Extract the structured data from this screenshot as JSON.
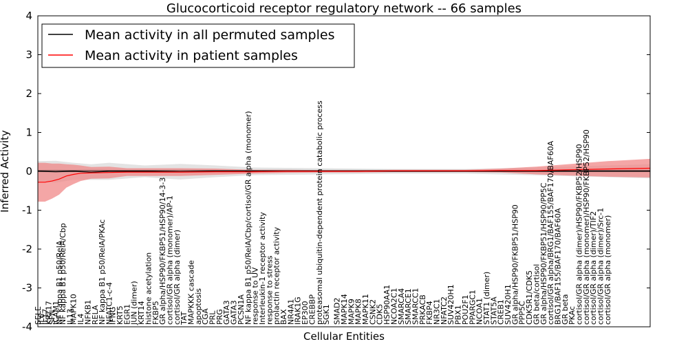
{
  "chart_data": {
    "type": "line",
    "title": "Glucocorticoid receptor regulatory network -- 66 samples",
    "xlabel": "Cellular Entities",
    "ylabel": "Inferred Activity",
    "ylim": [
      -4,
      4
    ],
    "yticks": [
      -4,
      -3,
      -2,
      -1,
      0,
      1,
      2,
      3,
      4
    ],
    "legend_position": "top-left",
    "series": [
      {
        "name": "Mean activity in all permuted samples",
        "color": "#000000",
        "x": [
          0,
          5,
          10,
          15,
          20,
          30,
          40,
          50,
          60,
          80,
          100,
          120,
          140,
          160,
          172
        ],
        "values": [
          0.0,
          -0.01,
          0.0,
          -0.02,
          0.0,
          0.0,
          -0.01,
          0.0,
          0.0,
          0.0,
          0.0,
          0.0,
          0.0,
          0.0,
          0.0
        ],
        "band": [
          0.26,
          0.28,
          0.22,
          0.2,
          0.22,
          0.15,
          0.2,
          0.15,
          0.1,
          0.08,
          0.06,
          0.06,
          0.1,
          0.15,
          0.18
        ],
        "band_color": "#cccccc"
      },
      {
        "name": "Mean activity in patient samples",
        "color": "#ff0000",
        "x": [
          0,
          2,
          4,
          6,
          8,
          10,
          12,
          15,
          20,
          25,
          30,
          40,
          50,
          60,
          70,
          80,
          90,
          100,
          110,
          120,
          130,
          140,
          150,
          160,
          172
        ],
        "values": [
          -0.28,
          -0.28,
          -0.25,
          -0.2,
          -0.12,
          -0.08,
          -0.05,
          -0.04,
          -0.03,
          -0.02,
          -0.02,
          -0.02,
          -0.01,
          -0.01,
          0.0,
          0.0,
          0.0,
          0.01,
          0.01,
          0.01,
          0.02,
          0.02,
          0.04,
          0.06,
          0.08
        ],
        "band": [
          0.5,
          0.5,
          0.45,
          0.4,
          0.3,
          0.25,
          0.2,
          0.15,
          0.15,
          0.1,
          0.1,
          0.1,
          0.08,
          0.05,
          0.04,
          0.03,
          0.03,
          0.03,
          0.03,
          0.03,
          0.05,
          0.1,
          0.15,
          0.2,
          0.24
        ],
        "band_color": "#f08080"
      }
    ],
    "xlim": [
      0,
      172
    ],
    "entities": [
      {
        "x": 0,
        "label": "SELE"
      },
      {
        "x": 1,
        "label": "IL6"
      },
      {
        "x": 2,
        "label": "IL17"
      },
      {
        "x": 3,
        "label": "KRT17"
      },
      {
        "x": 4,
        "label": "SFN"
      },
      {
        "x": 5,
        "label": "ICAM1"
      },
      {
        "x": 6,
        "label": "NF kappa B1 p50/RelA"
      },
      {
        "x": 7,
        "label": "NF kappa B1 p50/RelA/Cbp"
      },
      {
        "x": 9,
        "label": "IL13"
      },
      {
        "x": 10,
        "label": "MAPK10"
      },
      {
        "x": 12,
        "label": "IL4"
      },
      {
        "x": 14,
        "label": "NFKB1"
      },
      {
        "x": 16,
        "label": "RELA"
      },
      {
        "x": 18,
        "label": "NF kappa B1 p50/RelA/PKAc"
      },
      {
        "x": 20,
        "label": "NFATC1-c-4"
      },
      {
        "x": 21,
        "label": "IFNG"
      },
      {
        "x": 23,
        "label": "KRT5"
      },
      {
        "x": 25,
        "label": "EGR1"
      },
      {
        "x": 27,
        "label": "JUN (dimer)"
      },
      {
        "x": 29,
        "label": "KRT14"
      },
      {
        "x": 31,
        "label": "histone acetylation"
      },
      {
        "x": 33,
        "label": "FKBP5"
      },
      {
        "x": 35,
        "label": "GR alpha/HSP90/FKBP51/HSP90/14-3-3"
      },
      {
        "x": 37,
        "label": "cortisol/GR alpha (monomer)/AP-1"
      },
      {
        "x": 39,
        "label": "cortisol/GR alpha (dimer)"
      },
      {
        "x": 41,
        "label": "TAT"
      },
      {
        "x": 43,
        "label": "MAPKKK cascade"
      },
      {
        "x": 45,
        "label": "apoptosis"
      },
      {
        "x": 47,
        "label": "CGA"
      },
      {
        "x": 49,
        "label": "PRL"
      },
      {
        "x": 51,
        "label": "PRG"
      },
      {
        "x": 53,
        "label": "GATA3"
      },
      {
        "x": 55,
        "label": "GATA3"
      },
      {
        "x": 57,
        "label": "PCSN1A"
      },
      {
        "x": 59,
        "label": "NF kappa B1 p50/RelA/Cbp/cortisol/GR alpha (monomer)"
      },
      {
        "x": 61,
        "label": "response to UV"
      },
      {
        "x": 63,
        "label": "Interleukin-1 receptor activity"
      },
      {
        "x": 65,
        "label": "response to stress"
      },
      {
        "x": 67,
        "label": "prolactin receptor activity"
      },
      {
        "x": 69,
        "label": "BAX"
      },
      {
        "x": 71,
        "label": "NR4A1"
      },
      {
        "x": 73,
        "label": "IRAK1G"
      },
      {
        "x": 75,
        "label": "EP300"
      },
      {
        "x": 77,
        "label": "CREBBP"
      },
      {
        "x": 79,
        "label": "proteasomal ubiquitin-dependent protein catabolic process"
      },
      {
        "x": 81,
        "label": "SGK1"
      },
      {
        "x": 84,
        "label": "SMAD2"
      },
      {
        "x": 86,
        "label": "MAPK14"
      },
      {
        "x": 88,
        "label": "MAPK9"
      },
      {
        "x": 90,
        "label": "MAPK8"
      },
      {
        "x": 92,
        "label": "MAPK11"
      },
      {
        "x": 94,
        "label": "CSNK2"
      },
      {
        "x": 96,
        "label": "CDK5"
      },
      {
        "x": 98,
        "label": "HSP90AA1"
      },
      {
        "x": 100,
        "label": "NCOA2C1"
      },
      {
        "x": 102,
        "label": "SMARCA4"
      },
      {
        "x": 104,
        "label": "SMARCE1"
      },
      {
        "x": 106,
        "label": "SMARCC1"
      },
      {
        "x": 108,
        "label": "PRKACB"
      },
      {
        "x": 110,
        "label": "FKBP4"
      },
      {
        "x": 112,
        "label": "NR3C1"
      },
      {
        "x": 114,
        "label": "NFATC2"
      },
      {
        "x": 116,
        "label": "SUV420H1"
      },
      {
        "x": 118,
        "label": "PBX1"
      },
      {
        "x": 120,
        "label": "POU2F1"
      },
      {
        "x": 122,
        "label": "PPARGC1"
      },
      {
        "x": 124,
        "label": "NCOA1"
      },
      {
        "x": 126,
        "label": "STAT1 (dimer)"
      },
      {
        "x": 128,
        "label": "STAT5A"
      },
      {
        "x": 130,
        "label": "CREB1"
      },
      {
        "x": 132,
        "label": "SUV420H1"
      },
      {
        "x": 134,
        "label": "GR alpha/HSP90/FKBP51/HSP90"
      },
      {
        "x": 136,
        "label": "PPP5C"
      },
      {
        "x": 138,
        "label": "CDK5R1/CDK5"
      },
      {
        "x": 140,
        "label": "GR beta/cortisol"
      },
      {
        "x": 142,
        "label": "GR alpha/HSP90/FKBP51/HSP90/PP5C"
      },
      {
        "x": 144,
        "label": "cortisol/GR alpha/BRG1/BAF155/BAF170/BAF60A"
      },
      {
        "x": 146,
        "label": "BRG1/BAF155/BAF170/BAF60A"
      },
      {
        "x": 148,
        "label": "GR beta"
      },
      {
        "x": 150,
        "label": "PKAc"
      },
      {
        "x": 152,
        "label": "cortisol/GR alpha (dimer)/HSP90/FKBP52/HSP90"
      },
      {
        "x": 154,
        "label": "cortisol/GR alpha (monomer)/HSP90/FKBP52/HSP90"
      },
      {
        "x": 156,
        "label": "cortisol/GR alpha (dimer)/TIF2"
      },
      {
        "x": 158,
        "label": "cortisol/GR alpha (dimer)/Src-1"
      },
      {
        "x": 160,
        "label": "cortisol/GR alpha (monomer)"
      }
    ]
  }
}
